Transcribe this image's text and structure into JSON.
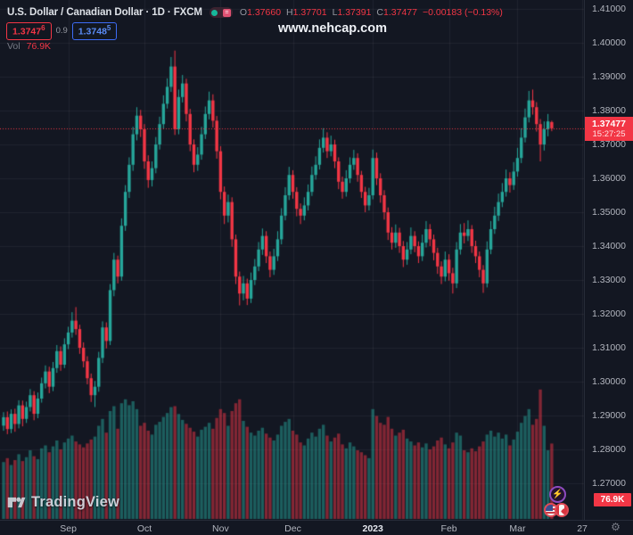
{
  "header": {
    "symbol_title": "U.S. Dollar / Canadian Dollar · 1D · FXCM",
    "ohlc": {
      "o_label": "O",
      "o": "1.37660",
      "h_label": "H",
      "h": "1.37701",
      "l_label": "L",
      "l": "1.37391",
      "c_label": "C",
      "c": "1.37477",
      "change": "−0.00183 (−0.13%)"
    },
    "bid": "1.3747",
    "bid_sup": "6",
    "spread": "0.9",
    "ask": "1.3748",
    "ask_sup": "5",
    "vol_label": "Vol",
    "vol_value": "76.9K"
  },
  "watermark": "www.nehcap.com",
  "logo_text": "TradingView",
  "price_axis": {
    "ticks": [
      {
        "label": "1.41000",
        "price": 1.41
      },
      {
        "label": "1.40000",
        "price": 1.4
      },
      {
        "label": "1.39000",
        "price": 1.39
      },
      {
        "label": "1.38000",
        "price": 1.38
      },
      {
        "label": "1.37000",
        "price": 1.37
      },
      {
        "label": "1.36000",
        "price": 1.36
      },
      {
        "label": "1.35000",
        "price": 1.35
      },
      {
        "label": "1.34000",
        "price": 1.34
      },
      {
        "label": "1.33000",
        "price": 1.33
      },
      {
        "label": "1.32000",
        "price": 1.32
      },
      {
        "label": "1.31000",
        "price": 1.31
      },
      {
        "label": "1.30000",
        "price": 1.3
      },
      {
        "label": "1.29000",
        "price": 1.29
      },
      {
        "label": "1.28000",
        "price": 1.28
      },
      {
        "label": "1.27000",
        "price": 1.27
      }
    ],
    "current_price_label": "1.37477",
    "countdown": "15:27:25",
    "volume_badge": "76.9K"
  },
  "time_axis": {
    "ticks": [
      {
        "label": "Sep",
        "day": 17,
        "strong": false
      },
      {
        "label": "Oct",
        "day": 37,
        "strong": false
      },
      {
        "label": "Nov",
        "day": 57,
        "strong": false
      },
      {
        "label": "Dec",
        "day": 76,
        "strong": false
      },
      {
        "label": "2023",
        "day": 97,
        "strong": true
      },
      {
        "label": "Feb",
        "day": 117,
        "strong": false
      },
      {
        "label": "Mar",
        "day": 135,
        "strong": false
      },
      {
        "label": "27",
        "day": 152,
        "strong": false
      }
    ]
  },
  "colors": {
    "bg": "#131722",
    "grid": "rgba(240,243,250,0.06)",
    "up": "#26a69a",
    "down": "#f23645",
    "vol_up": "rgba(38,166,154,0.5)",
    "vol_down": "rgba(242,54,69,0.5)",
    "price_line": "#f23645",
    "axis_text": "#b2b5be",
    "accent_blue": "#2962ff"
  },
  "chart_data": {
    "type": "candlestick",
    "title": "U.S. Dollar / Canadian Dollar, 1D, FXCM",
    "x_unit": "trading-day index (mid-Aug 2022 to Mar 27 2023)",
    "ylim": [
      1.27,
      1.41
    ],
    "grid": true,
    "current_price": 1.37477,
    "columns": [
      "open",
      "high",
      "low",
      "close",
      "volume_k"
    ],
    "candles": [
      [
        1.287,
        1.291,
        1.2855,
        1.2895,
        58
      ],
      [
        1.2895,
        1.2912,
        1.2845,
        1.286,
        62
      ],
      [
        1.286,
        1.2918,
        1.2848,
        1.2905,
        55
      ],
      [
        1.2905,
        1.292,
        1.2852,
        1.2875,
        60
      ],
      [
        1.2875,
        1.2945,
        1.2862,
        1.293,
        66
      ],
      [
        1.293,
        1.2944,
        1.2868,
        1.289,
        59
      ],
      [
        1.289,
        1.2941,
        1.2878,
        1.2925,
        63
      ],
      [
        1.2925,
        1.2978,
        1.2912,
        1.296,
        70
      ],
      [
        1.296,
        1.2972,
        1.2886,
        1.2905,
        64
      ],
      [
        1.2905,
        1.2968,
        1.2892,
        1.295,
        61
      ],
      [
        1.295,
        1.3012,
        1.2938,
        1.2995,
        72
      ],
      [
        1.2995,
        1.3048,
        1.298,
        1.303,
        75
      ],
      [
        1.303,
        1.3044,
        1.2966,
        1.2985,
        68
      ],
      [
        1.2985,
        1.3058,
        1.2972,
        1.304,
        74
      ],
      [
        1.304,
        1.3108,
        1.3026,
        1.309,
        80
      ],
      [
        1.309,
        1.3104,
        1.3032,
        1.305,
        71
      ],
      [
        1.305,
        1.3128,
        1.304,
        1.311,
        78
      ],
      [
        1.311,
        1.3162,
        1.3096,
        1.3145,
        82
      ],
      [
        1.3145,
        1.3205,
        1.313,
        1.318,
        85
      ],
      [
        1.318,
        1.322,
        1.3138,
        1.3155,
        79
      ],
      [
        1.3155,
        1.3168,
        1.3082,
        1.31,
        76
      ],
      [
        1.31,
        1.3116,
        1.3042,
        1.306,
        73
      ],
      [
        1.306,
        1.3075,
        1.2992,
        1.301,
        77
      ],
      [
        1.301,
        1.3024,
        1.294,
        1.296,
        81
      ],
      [
        1.296,
        1.3002,
        1.2925,
        1.2985,
        84
      ],
      [
        1.2985,
        1.3088,
        1.297,
        1.307,
        95
      ],
      [
        1.307,
        1.3178,
        1.3055,
        1.316,
        102
      ],
      [
        1.316,
        1.3175,
        1.3098,
        1.312,
        88
      ],
      [
        1.312,
        1.3288,
        1.3108,
        1.327,
        110
      ],
      [
        1.327,
        1.338,
        1.3252,
        1.336,
        115
      ],
      [
        1.336,
        1.3372,
        1.329,
        1.331,
        92
      ],
      [
        1.331,
        1.3482,
        1.3298,
        1.346,
        118
      ],
      [
        1.346,
        1.358,
        1.3445,
        1.356,
        122
      ],
      [
        1.356,
        1.3662,
        1.3542,
        1.364,
        116
      ],
      [
        1.364,
        1.3752,
        1.3622,
        1.373,
        120
      ],
      [
        1.373,
        1.381,
        1.3712,
        1.3785,
        112
      ],
      [
        1.3785,
        1.3802,
        1.3722,
        1.3745,
        95
      ],
      [
        1.3745,
        1.376,
        1.3628,
        1.365,
        98
      ],
      [
        1.365,
        1.3668,
        1.3572,
        1.3595,
        90
      ],
      [
        1.3595,
        1.365,
        1.3576,
        1.363,
        86
      ],
      [
        1.363,
        1.3722,
        1.3615,
        1.37,
        96
      ],
      [
        1.37,
        1.3782,
        1.3685,
        1.376,
        99
      ],
      [
        1.376,
        1.3845,
        1.3746,
        1.382,
        104
      ],
      [
        1.382,
        1.3895,
        1.3806,
        1.387,
        108
      ],
      [
        1.387,
        1.3958,
        1.3855,
        1.393,
        114
      ],
      [
        1.393,
        1.3977,
        1.3728,
        1.3745,
        115
      ],
      [
        1.3745,
        1.3862,
        1.373,
        1.384,
        107
      ],
      [
        1.384,
        1.3905,
        1.3824,
        1.388,
        101
      ],
      [
        1.388,
        1.3894,
        1.3768,
        1.379,
        97
      ],
      [
        1.379,
        1.3805,
        1.368,
        1.37,
        93
      ],
      [
        1.37,
        1.3715,
        1.3618,
        1.364,
        89
      ],
      [
        1.364,
        1.3692,
        1.3622,
        1.367,
        84
      ],
      [
        1.367,
        1.3752,
        1.3655,
        1.373,
        91
      ],
      [
        1.373,
        1.3812,
        1.3716,
        1.379,
        94
      ],
      [
        1.379,
        1.3856,
        1.3774,
        1.383,
        98
      ],
      [
        1.383,
        1.3848,
        1.375,
        1.377,
        92
      ],
      [
        1.377,
        1.3784,
        1.3658,
        1.368,
        103
      ],
      [
        1.368,
        1.3695,
        1.3538,
        1.356,
        112
      ],
      [
        1.356,
        1.3576,
        1.3465,
        1.349,
        108
      ],
      [
        1.349,
        1.3552,
        1.347,
        1.353,
        95
      ],
      [
        1.353,
        1.3544,
        1.3398,
        1.342,
        110
      ],
      [
        1.342,
        1.3434,
        1.3288,
        1.331,
        118
      ],
      [
        1.331,
        1.3325,
        1.3225,
        1.326,
        122
      ],
      [
        1.326,
        1.3312,
        1.324,
        1.329,
        100
      ],
      [
        1.329,
        1.3304,
        1.3226,
        1.3245,
        94
      ],
      [
        1.3245,
        1.3322,
        1.3232,
        1.33,
        88
      ],
      [
        1.33,
        1.3362,
        1.3285,
        1.334,
        85
      ],
      [
        1.334,
        1.3412,
        1.3326,
        1.339,
        90
      ],
      [
        1.339,
        1.3452,
        1.3374,
        1.343,
        93
      ],
      [
        1.343,
        1.3444,
        1.335,
        1.337,
        87
      ],
      [
        1.337,
        1.3384,
        1.3308,
        1.333,
        83
      ],
      [
        1.333,
        1.3392,
        1.3315,
        1.337,
        80
      ],
      [
        1.337,
        1.3444,
        1.3356,
        1.342,
        86
      ],
      [
        1.342,
        1.3512,
        1.3405,
        1.349,
        95
      ],
      [
        1.349,
        1.3574,
        1.3476,
        1.355,
        99
      ],
      [
        1.355,
        1.3634,
        1.3536,
        1.361,
        102
      ],
      [
        1.361,
        1.3624,
        1.354,
        1.356,
        90
      ],
      [
        1.356,
        1.3574,
        1.3488,
        1.351,
        86
      ],
      [
        1.351,
        1.3526,
        1.3465,
        1.349,
        78
      ],
      [
        1.349,
        1.3544,
        1.3476,
        1.352,
        75
      ],
      [
        1.352,
        1.3582,
        1.3505,
        1.356,
        82
      ],
      [
        1.356,
        1.3635,
        1.3548,
        1.361,
        88
      ],
      [
        1.361,
        1.3665,
        1.3596,
        1.364,
        84
      ],
      [
        1.364,
        1.3715,
        1.3626,
        1.369,
        92
      ],
      [
        1.369,
        1.3748,
        1.3676,
        1.372,
        96
      ],
      [
        1.372,
        1.3736,
        1.366,
        1.368,
        85
      ],
      [
        1.368,
        1.3726,
        1.3665,
        1.37,
        79
      ],
      [
        1.37,
        1.3714,
        1.363,
        1.365,
        83
      ],
      [
        1.365,
        1.3662,
        1.3568,
        1.359,
        87
      ],
      [
        1.359,
        1.3605,
        1.354,
        1.356,
        76
      ],
      [
        1.356,
        1.3624,
        1.3546,
        1.36,
        72
      ],
      [
        1.36,
        1.3662,
        1.3586,
        1.364,
        78
      ],
      [
        1.364,
        1.3684,
        1.3625,
        1.366,
        74
      ],
      [
        1.366,
        1.3674,
        1.359,
        1.361,
        70
      ],
      [
        1.361,
        1.3622,
        1.3542,
        1.356,
        68
      ],
      [
        1.356,
        1.3575,
        1.35,
        1.352,
        65
      ],
      [
        1.352,
        1.3572,
        1.3505,
        1.355,
        62
      ],
      [
        1.355,
        1.3685,
        1.3538,
        1.366,
        112
      ],
      [
        1.366,
        1.3676,
        1.358,
        1.36,
        105
      ],
      [
        1.36,
        1.3615,
        1.3528,
        1.355,
        98
      ],
      [
        1.355,
        1.3565,
        1.3478,
        1.35,
        96
      ],
      [
        1.35,
        1.3514,
        1.3418,
        1.344,
        104
      ],
      [
        1.344,
        1.3456,
        1.339,
        1.341,
        92
      ],
      [
        1.341,
        1.3464,
        1.3395,
        1.344,
        85
      ],
      [
        1.344,
        1.3454,
        1.338,
        1.34,
        88
      ],
      [
        1.34,
        1.3415,
        1.3338,
        1.336,
        91
      ],
      [
        1.336,
        1.3412,
        1.3345,
        1.339,
        82
      ],
      [
        1.339,
        1.3455,
        1.3376,
        1.343,
        79
      ],
      [
        1.343,
        1.3444,
        1.3382,
        1.34,
        75
      ],
      [
        1.34,
        1.3414,
        1.335,
        1.337,
        78
      ],
      [
        1.337,
        1.3434,
        1.3356,
        1.341,
        73
      ],
      [
        1.341,
        1.3474,
        1.3396,
        1.345,
        77
      ],
      [
        1.345,
        1.3465,
        1.34,
        1.342,
        71
      ],
      [
        1.342,
        1.3434,
        1.3358,
        1.338,
        74
      ],
      [
        1.338,
        1.3395,
        1.3318,
        1.334,
        80
      ],
      [
        1.334,
        1.3355,
        1.3288,
        1.331,
        83
      ],
      [
        1.331,
        1.3384,
        1.3296,
        1.336,
        76
      ],
      [
        1.336,
        1.3376,
        1.3298,
        1.332,
        72
      ],
      [
        1.332,
        1.3336,
        1.326,
        1.329,
        78
      ],
      [
        1.329,
        1.3412,
        1.3276,
        1.339,
        88
      ],
      [
        1.339,
        1.3465,
        1.3375,
        1.344,
        85
      ],
      [
        1.344,
        1.3468,
        1.3408,
        1.343,
        70
      ],
      [
        1.343,
        1.3476,
        1.3415,
        1.345,
        68
      ],
      [
        1.345,
        1.3462,
        1.338,
        1.34,
        72
      ],
      [
        1.34,
        1.3416,
        1.335,
        1.337,
        69
      ],
      [
        1.337,
        1.3384,
        1.3308,
        1.333,
        74
      ],
      [
        1.333,
        1.3344,
        1.3262,
        1.329,
        79
      ],
      [
        1.329,
        1.3414,
        1.3278,
        1.339,
        86
      ],
      [
        1.339,
        1.3474,
        1.3376,
        1.345,
        90
      ],
      [
        1.345,
        1.3516,
        1.3436,
        1.349,
        84
      ],
      [
        1.349,
        1.3555,
        1.3474,
        1.353,
        88
      ],
      [
        1.353,
        1.3586,
        1.3515,
        1.356,
        82
      ],
      [
        1.356,
        1.3626,
        1.3546,
        1.36,
        86
      ],
      [
        1.36,
        1.3618,
        1.3558,
        1.358,
        75
      ],
      [
        1.358,
        1.3648,
        1.3566,
        1.362,
        81
      ],
      [
        1.362,
        1.369,
        1.3605,
        1.366,
        89
      ],
      [
        1.366,
        1.3748,
        1.3645,
        1.372,
        98
      ],
      [
        1.372,
        1.3806,
        1.3706,
        1.378,
        105
      ],
      [
        1.378,
        1.3858,
        1.3765,
        1.383,
        112
      ],
      [
        1.383,
        1.3862,
        1.3788,
        1.381,
        96
      ],
      [
        1.381,
        1.3825,
        1.3738,
        1.376,
        102
      ],
      [
        1.376,
        1.3775,
        1.365,
        1.37,
        132
      ],
      [
        1.37,
        1.3768,
        1.3682,
        1.3745,
        95
      ],
      [
        1.3745,
        1.379,
        1.3724,
        1.3768,
        70
      ],
      [
        1.3766,
        1.37701,
        1.37391,
        1.37477,
        76.9
      ]
    ]
  }
}
